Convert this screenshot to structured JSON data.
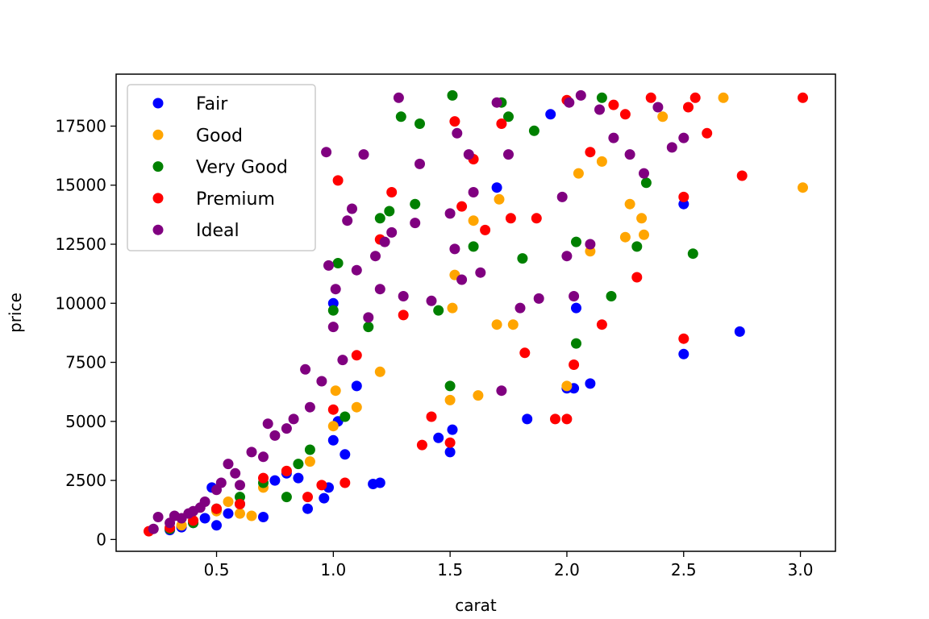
{
  "chart_data": {
    "type": "scatter",
    "title": "",
    "xlabel": "carat",
    "ylabel": "price",
    "xlim": [
      0.07,
      3.15
    ],
    "ylim": [
      -500,
      19700
    ],
    "x_ticks": [
      0.5,
      1.0,
      1.5,
      2.0,
      2.5,
      3.0
    ],
    "x_tick_labels": [
      "0.5",
      "1.0",
      "1.5",
      "2.0",
      "2.5",
      "3.0"
    ],
    "y_ticks": [
      0,
      2500,
      5000,
      7500,
      10000,
      12500,
      15000,
      17500
    ],
    "y_tick_labels": [
      "0",
      "2500",
      "5000",
      "7500",
      "10000",
      "12500",
      "15000",
      "17500"
    ],
    "grid": false,
    "legend_position": "upper-left",
    "series": [
      {
        "name": "Fair",
        "color": "#0000ff",
        "points": [
          [
            0.3,
            400
          ],
          [
            0.35,
            520
          ],
          [
            0.4,
            700
          ],
          [
            0.45,
            900
          ],
          [
            0.48,
            2200
          ],
          [
            0.5,
            600
          ],
          [
            0.55,
            1100
          ],
          [
            0.6,
            1500
          ],
          [
            0.7,
            950
          ],
          [
            0.75,
            2500
          ],
          [
            0.8,
            2800
          ],
          [
            0.85,
            2600
          ],
          [
            0.89,
            1300
          ],
          [
            0.96,
            1750
          ],
          [
            0.98,
            2200
          ],
          [
            1.0,
            10000
          ],
          [
            1.0,
            4200
          ],
          [
            1.02,
            5000
          ],
          [
            1.05,
            3600
          ],
          [
            1.1,
            6500
          ],
          [
            1.17,
            2350
          ],
          [
            1.2,
            2400
          ],
          [
            1.45,
            4300
          ],
          [
            1.5,
            3700
          ],
          [
            1.51,
            4650
          ],
          [
            1.7,
            14900
          ],
          [
            1.83,
            5100
          ],
          [
            1.93,
            18000
          ],
          [
            2.0,
            6400
          ],
          [
            2.03,
            6400
          ],
          [
            2.04,
            9800
          ],
          [
            2.1,
            6600
          ],
          [
            2.5,
            7850
          ],
          [
            2.5,
            14200
          ],
          [
            2.74,
            8800
          ]
        ]
      },
      {
        "name": "Good",
        "color": "#ffa500",
        "points": [
          [
            0.3,
            450
          ],
          [
            0.35,
            600
          ],
          [
            0.4,
            800
          ],
          [
            0.5,
            1200
          ],
          [
            0.55,
            1600
          ],
          [
            0.6,
            1100
          ],
          [
            0.65,
            1000
          ],
          [
            0.7,
            2200
          ],
          [
            0.8,
            2900
          ],
          [
            0.9,
            3300
          ],
          [
            1.0,
            4800
          ],
          [
            1.01,
            6300
          ],
          [
            1.1,
            5600
          ],
          [
            1.2,
            7100
          ],
          [
            1.5,
            5900
          ],
          [
            1.51,
            9800
          ],
          [
            1.52,
            11200
          ],
          [
            1.6,
            13500
          ],
          [
            1.62,
            6100
          ],
          [
            1.7,
            9100
          ],
          [
            1.71,
            14400
          ],
          [
            1.77,
            9100
          ],
          [
            2.0,
            6500
          ],
          [
            2.05,
            15500
          ],
          [
            2.1,
            12200
          ],
          [
            2.15,
            16000
          ],
          [
            2.25,
            12800
          ],
          [
            2.27,
            14200
          ],
          [
            2.33,
            12900
          ],
          [
            2.32,
            13600
          ],
          [
            2.41,
            17900
          ],
          [
            2.67,
            18700
          ],
          [
            3.01,
            14900
          ]
        ]
      },
      {
        "name": "Very Good",
        "color": "#008000",
        "points": [
          [
            0.3,
            450
          ],
          [
            0.4,
            700
          ],
          [
            0.5,
            1300
          ],
          [
            0.6,
            1800
          ],
          [
            0.7,
            2400
          ],
          [
            0.8,
            1800
          ],
          [
            0.85,
            3200
          ],
          [
            0.9,
            3800
          ],
          [
            1.0,
            9700
          ],
          [
            1.02,
            11700
          ],
          [
            1.05,
            5200
          ],
          [
            1.15,
            9000
          ],
          [
            1.2,
            13600
          ],
          [
            1.24,
            13900
          ],
          [
            1.29,
            17900
          ],
          [
            1.35,
            14200
          ],
          [
            1.37,
            17600
          ],
          [
            1.45,
            9700
          ],
          [
            1.5,
            6500
          ],
          [
            1.51,
            18800
          ],
          [
            1.6,
            12400
          ],
          [
            1.72,
            18500
          ],
          [
            1.75,
            17900
          ],
          [
            1.81,
            11900
          ],
          [
            1.86,
            17300
          ],
          [
            2.04,
            8300
          ],
          [
            2.04,
            12600
          ],
          [
            2.15,
            18700
          ],
          [
            2.19,
            10300
          ],
          [
            2.3,
            12400
          ],
          [
            2.34,
            15100
          ],
          [
            2.54,
            12100
          ]
        ]
      },
      {
        "name": "Premium",
        "color": "#ff0000",
        "points": [
          [
            0.21,
            350
          ],
          [
            0.3,
            500
          ],
          [
            0.4,
            800
          ],
          [
            0.5,
            1300
          ],
          [
            0.6,
            1500
          ],
          [
            0.7,
            2600
          ],
          [
            0.8,
            2900
          ],
          [
            0.89,
            1800
          ],
          [
            0.95,
            2300
          ],
          [
            1.0,
            5500
          ],
          [
            1.02,
            15200
          ],
          [
            1.05,
            2400
          ],
          [
            1.1,
            7800
          ],
          [
            1.2,
            12700
          ],
          [
            1.25,
            14700
          ],
          [
            1.3,
            9500
          ],
          [
            1.38,
            4000
          ],
          [
            1.42,
            5200
          ],
          [
            1.5,
            4100
          ],
          [
            1.52,
            17700
          ],
          [
            1.55,
            14100
          ],
          [
            1.6,
            16100
          ],
          [
            1.65,
            13100
          ],
          [
            1.72,
            17600
          ],
          [
            1.76,
            13600
          ],
          [
            1.82,
            7900
          ],
          [
            1.87,
            13600
          ],
          [
            1.95,
            5100
          ],
          [
            2.0,
            5100
          ],
          [
            2.0,
            18600
          ],
          [
            2.03,
            7400
          ],
          [
            2.1,
            16400
          ],
          [
            2.15,
            9100
          ],
          [
            2.2,
            18400
          ],
          [
            2.25,
            18000
          ],
          [
            2.3,
            11100
          ],
          [
            2.36,
            18700
          ],
          [
            2.5,
            8500
          ],
          [
            2.5,
            14500
          ],
          [
            2.52,
            18300
          ],
          [
            2.55,
            18700
          ],
          [
            2.6,
            17200
          ],
          [
            2.75,
            15400
          ],
          [
            3.01,
            18700
          ]
        ]
      },
      {
        "name": "Ideal",
        "color": "#800080",
        "points": [
          [
            0.23,
            450
          ],
          [
            0.25,
            950
          ],
          [
            0.3,
            700
          ],
          [
            0.32,
            1000
          ],
          [
            0.35,
            900
          ],
          [
            0.38,
            1100
          ],
          [
            0.4,
            1200
          ],
          [
            0.43,
            1350
          ],
          [
            0.45,
            1600
          ],
          [
            0.5,
            2100
          ],
          [
            0.52,
            2400
          ],
          [
            0.55,
            3200
          ],
          [
            0.58,
            2800
          ],
          [
            0.6,
            2300
          ],
          [
            0.65,
            3700
          ],
          [
            0.7,
            3500
          ],
          [
            0.72,
            4900
          ],
          [
            0.75,
            4400
          ],
          [
            0.8,
            4700
          ],
          [
            0.83,
            5100
          ],
          [
            0.88,
            7200
          ],
          [
            0.9,
            5600
          ],
          [
            0.95,
            6700
          ],
          [
            0.98,
            11600
          ],
          [
            0.97,
            16400
          ],
          [
            1.0,
            9000
          ],
          [
            1.01,
            10600
          ],
          [
            1.04,
            7600
          ],
          [
            1.06,
            13500
          ],
          [
            1.08,
            14000
          ],
          [
            1.1,
            11400
          ],
          [
            1.13,
            16300
          ],
          [
            1.15,
            9400
          ],
          [
            1.18,
            12000
          ],
          [
            1.2,
            10600
          ],
          [
            1.22,
            12600
          ],
          [
            1.25,
            13000
          ],
          [
            1.28,
            18700
          ],
          [
            1.3,
            10300
          ],
          [
            1.35,
            13400
          ],
          [
            1.37,
            15900
          ],
          [
            1.42,
            10100
          ],
          [
            1.5,
            13800
          ],
          [
            1.52,
            12300
          ],
          [
            1.53,
            17200
          ],
          [
            1.55,
            11000
          ],
          [
            1.58,
            16300
          ],
          [
            1.6,
            14700
          ],
          [
            1.63,
            11300
          ],
          [
            1.7,
            18500
          ],
          [
            1.72,
            6300
          ],
          [
            1.75,
            16300
          ],
          [
            1.8,
            9800
          ],
          [
            1.88,
            10200
          ],
          [
            1.98,
            14500
          ],
          [
            2.0,
            12000
          ],
          [
            2.01,
            18500
          ],
          [
            2.03,
            10300
          ],
          [
            2.06,
            18800
          ],
          [
            2.1,
            12500
          ],
          [
            2.14,
            18200
          ],
          [
            2.2,
            17000
          ],
          [
            2.27,
            16300
          ],
          [
            2.33,
            15500
          ],
          [
            2.39,
            18300
          ],
          [
            2.45,
            16600
          ],
          [
            2.5,
            17000
          ]
        ]
      }
    ]
  }
}
